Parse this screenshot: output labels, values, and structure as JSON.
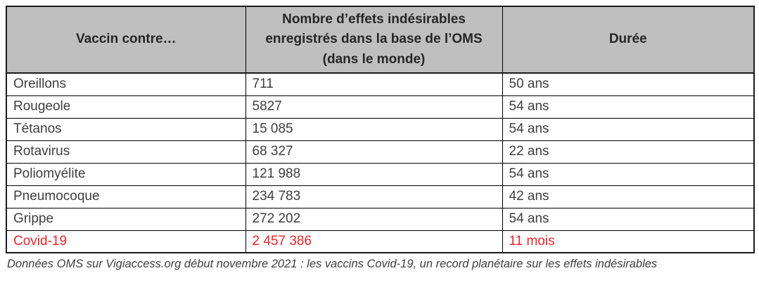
{
  "table": {
    "columns": [
      "Vaccin contre…",
      "Nombre d’effets indésirables enregistrés dans la base de l’OMS (dans le monde)",
      "Durée"
    ],
    "rows": [
      {
        "vaccine": "Oreillons",
        "count": "711",
        "duration": "50 ans",
        "highlight": false
      },
      {
        "vaccine": "Rougeole",
        "count": "5827",
        "duration": "54 ans",
        "highlight": false
      },
      {
        "vaccine": "Tétanos",
        "count": "15 085",
        "duration": "54 ans",
        "highlight": false
      },
      {
        "vaccine": "Rotavirus",
        "count": "68 327",
        "duration": "22 ans",
        "highlight": false
      },
      {
        "vaccine": "Poliomyélite",
        "count": "121 988",
        "duration": "54 ans",
        "highlight": false
      },
      {
        "vaccine": "Pneumocoque",
        "count": "234 783",
        "duration": "42 ans",
        "highlight": false
      },
      {
        "vaccine": "Grippe",
        "count": "272 202",
        "duration": "54 ans",
        "highlight": false
      },
      {
        "vaccine": "Covid-19",
        "count": "2 457 386",
        "duration": "11 mois",
        "highlight": true
      }
    ]
  },
  "caption": "Données OMS sur Vigiaccess.org début novembre 2021 : les vaccins Covid-19, un record planétaire sur les effets indésirables",
  "colors": {
    "header_bg": "#bfbfbf",
    "body_text": "#3f3f3f",
    "header_text": "#262626",
    "highlight_red": "#e8262a",
    "border": "#000000"
  }
}
